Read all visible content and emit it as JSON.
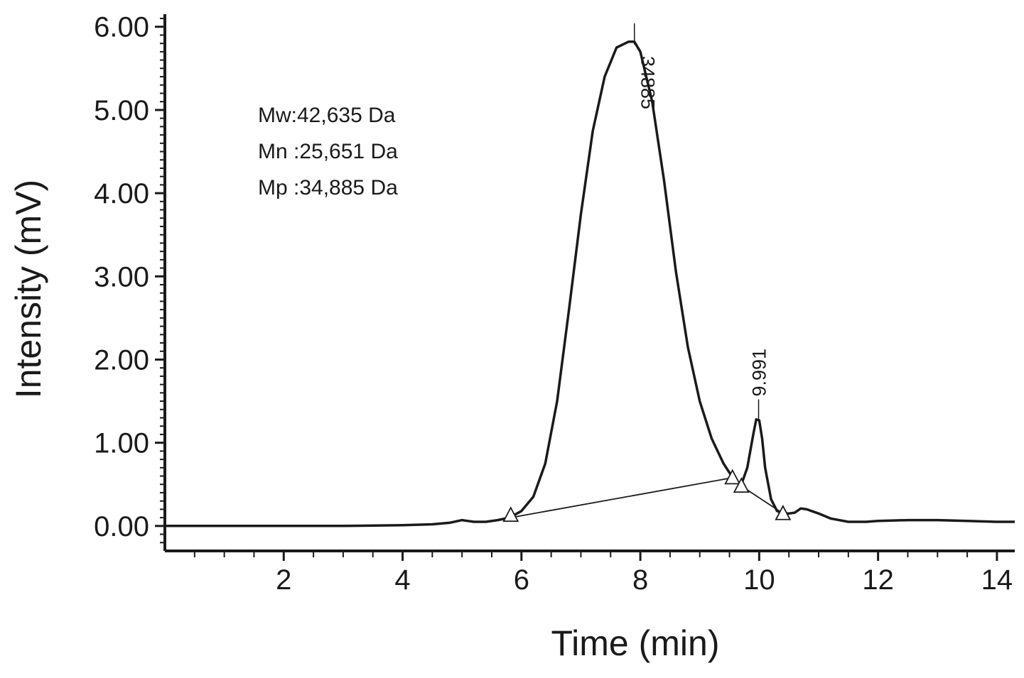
{
  "chart_data": {
    "type": "line",
    "title": "",
    "xlabel": "Time (min)",
    "ylabel": "Intensity (mV)",
    "xlim": [
      0,
      14.3
    ],
    "ylim": [
      -0.3,
      6.1
    ],
    "xticks": [
      2,
      4,
      6,
      8,
      10,
      12,
      14
    ],
    "xtick_labels": [
      "2",
      "4",
      "6",
      "8",
      "10",
      "12",
      "14"
    ],
    "yticks": [
      0,
      1,
      2,
      3,
      4,
      5,
      6
    ],
    "ytick_labels": [
      "0.00",
      "1.00",
      "2.00",
      "3.00",
      "4.00",
      "5.00",
      "6.00"
    ],
    "grid": false,
    "annotations": [
      "Mw:42,635 Da",
      "Mn :25,651 Da",
      "Mp :34,885 Da"
    ],
    "series": [
      {
        "x": [
          0,
          1,
          2,
          3,
          4,
          4.5,
          4.8,
          5.0,
          5.1,
          5.2,
          5.4,
          5.6,
          5.8,
          6.0,
          6.2,
          6.4,
          6.6,
          6.8,
          7.0,
          7.2,
          7.4,
          7.6,
          7.8,
          7.9,
          8.0,
          8.2,
          8.4,
          8.6,
          8.8,
          9.0,
          9.2,
          9.4,
          9.6,
          9.7,
          9.8,
          9.9,
          9.95,
          10.0,
          10.05,
          10.1,
          10.2,
          10.3,
          10.4,
          10.5,
          10.6,
          10.7,
          10.8,
          11.0,
          11.2,
          11.5,
          11.8,
          12.0,
          12.5,
          13.0,
          13.5,
          14.0,
          14.3
        ],
        "y": [
          0.0,
          0.0,
          0.0,
          0.0,
          0.01,
          0.02,
          0.04,
          0.07,
          0.06,
          0.05,
          0.05,
          0.07,
          0.1,
          0.18,
          0.35,
          0.75,
          1.5,
          2.6,
          3.75,
          4.75,
          5.4,
          5.75,
          5.82,
          5.82,
          5.7,
          5.1,
          4.15,
          3.05,
          2.15,
          1.5,
          1.05,
          0.75,
          0.53,
          0.5,
          0.7,
          1.1,
          1.28,
          1.27,
          1.05,
          0.7,
          0.32,
          0.18,
          0.15,
          0.15,
          0.16,
          0.21,
          0.2,
          0.15,
          0.09,
          0.05,
          0.05,
          0.06,
          0.07,
          0.07,
          0.06,
          0.05,
          0.05
        ]
      }
    ],
    "integration_baseline": [
      {
        "x": 5.82,
        "y": 0.1
      },
      {
        "x": 9.55,
        "y": 0.58
      },
      {
        "x": 9.7,
        "y": 0.48
      },
      {
        "x": 10.4,
        "y": 0.15
      }
    ],
    "baseline_markers": [
      {
        "x": 5.82,
        "y": 0.1
      },
      {
        "x": 9.55,
        "y": 0.55
      },
      {
        "x": 9.7,
        "y": 0.45
      },
      {
        "x": 10.4,
        "y": 0.12
      }
    ],
    "peak_labels": [
      {
        "text": "34885",
        "x": 7.9,
        "y": 5.82
      },
      {
        "text": "9.991",
        "x": 9.99,
        "y": 1.3
      }
    ]
  }
}
